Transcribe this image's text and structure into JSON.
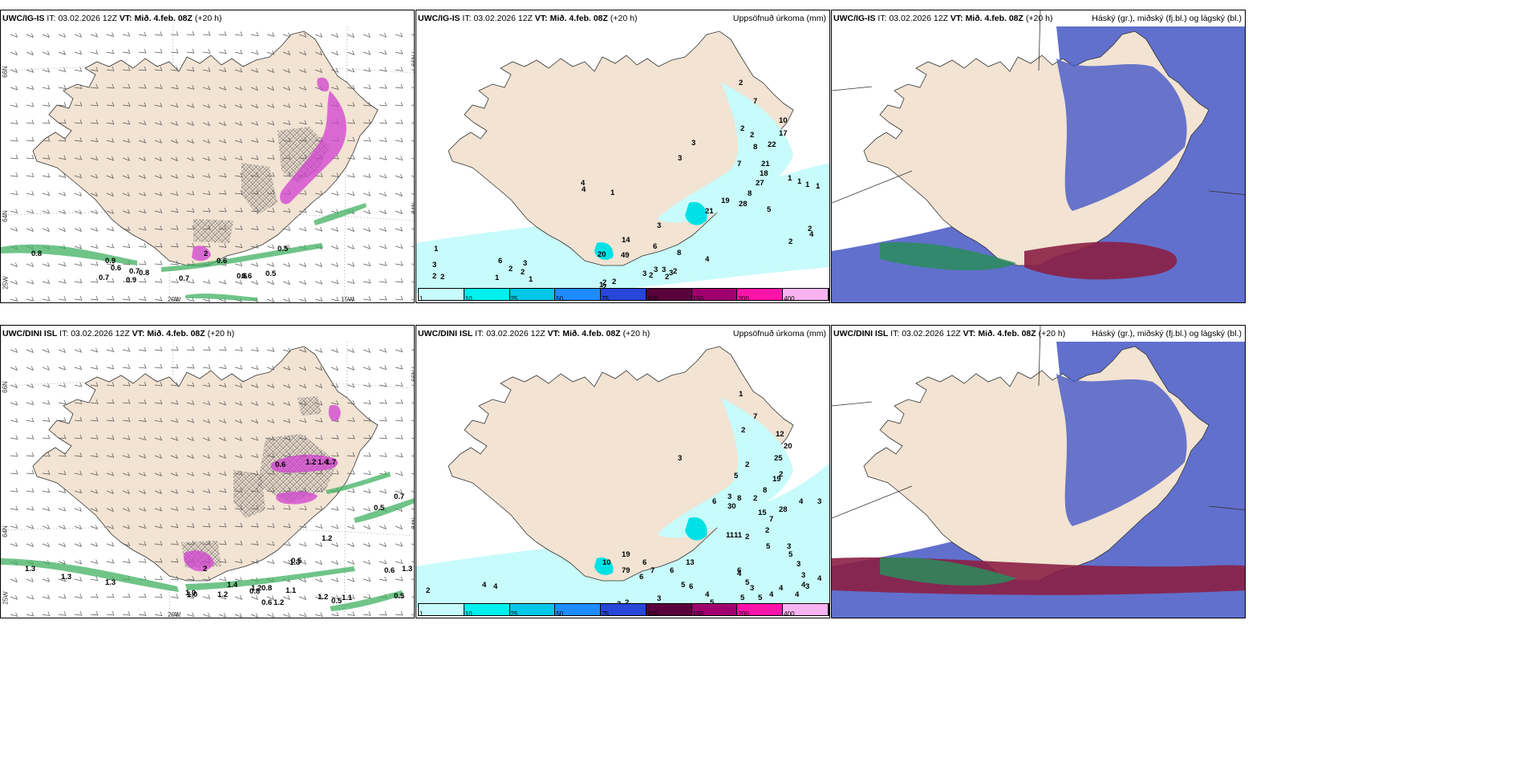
{
  "rows": [
    {
      "model": "UWC/IG-IS",
      "panels": [
        {
          "model": "UWC/IG-IS",
          "it_label": "IT:",
          "it": "03.02.2026 12Z",
          "vt_label": "VT:",
          "vt": "Mið. 4.feb. 08Z",
          "lead": "(+20 h)",
          "subtitle": "",
          "axis_labels": [
            "66N",
            "64N",
            "25W",
            "20W",
            "15W",
            "66N",
            "64N"
          ],
          "values": [
            "0.8",
            "0.9",
            "0.6",
            "0.7",
            "0.7",
            "0.9",
            "0.8",
            "0.7",
            "0.6",
            "0.6",
            "0.5",
            "0.5",
            "0.6",
            "2"
          ]
        },
        {
          "model": "UWC/IG-IS",
          "it_label": "IT:",
          "it": "03.02.2026 12Z",
          "vt_label": "VT:",
          "vt": "Mið. 4.feb. 08Z",
          "lead": "(+20 h)",
          "subtitle": "Uppsöfnuð úrkoma (mm)",
          "values": [
            "2",
            "7",
            "4",
            "2",
            "2",
            "10",
            "17",
            "22",
            "3",
            "8",
            "3",
            "21",
            "18",
            "4",
            "7",
            "27",
            "1",
            "1",
            "1",
            "1",
            "8",
            "19",
            "21",
            "28",
            "3",
            "5",
            "2",
            "2",
            "4",
            "1",
            "20",
            "14",
            "6",
            "8",
            "49",
            "3",
            "2",
            "1",
            "3",
            "6",
            "3",
            "2",
            "2",
            "1",
            "1",
            "2",
            "2",
            "3",
            "3",
            "2",
            "3",
            "2",
            "2",
            "1",
            "2",
            "2",
            "4"
          ]
        },
        {
          "model": "UWC/IG-IS",
          "it_label": "IT:",
          "it": "03.02.2026 12Z",
          "vt_label": "VT:",
          "vt": "Mið. 4.feb. 08Z",
          "lead": "(+20 h)",
          "subtitle": "Háský (gr.), miðský (fj.bl.) og lágský (bl.)"
        }
      ]
    },
    {
      "model": "UWC/DINI ISL",
      "panels": [
        {
          "model": "UWC/DINI ISL",
          "it_label": "IT:",
          "it": "03.02.2026 12Z",
          "vt_label": "VT:",
          "vt": "Mið. 4.feb. 08Z",
          "lead": "(+20 h)",
          "subtitle": "",
          "axis_labels": [
            "66N",
            "64N",
            "25W",
            "20W",
            "66N",
            "64N"
          ],
          "values": [
            "1.3",
            "1.3",
            "1.3",
            "1.0",
            "1.4",
            "1.2",
            "1.2",
            "0.8",
            "1.1",
            "0.6",
            "1.2",
            "1.2",
            "0.5",
            "1.1",
            "1.2",
            "0.5",
            "1.3",
            "0.6",
            "0.7",
            "0.5",
            "1.3",
            "0.5",
            "1.2",
            "1.4",
            "1.7",
            "2",
            "0.6",
            "0.8",
            "1.0"
          ]
        },
        {
          "model": "UWC/DINI ISL",
          "it_label": "IT:",
          "it": "03.02.2026 12Z",
          "vt_label": "VT:",
          "vt": "Mið. 4.feb. 08Z",
          "lead": "(+20 h)",
          "subtitle": "Uppsöfnuð úrkoma (mm)",
          "values": [
            "1",
            "7",
            "2",
            "12",
            "20",
            "25",
            "3",
            "2",
            "2",
            "8",
            "19",
            "5",
            "3",
            "6",
            "2",
            "8",
            "30",
            "15",
            "28",
            "4",
            "3",
            "7",
            "2",
            "2",
            "3",
            "11",
            "11",
            "5",
            "6",
            "5",
            "3",
            "3",
            "4",
            "3",
            "4",
            "4",
            "4",
            "4",
            "3",
            "4",
            "5",
            "5",
            "5",
            "13",
            "6",
            "5",
            "7",
            "6",
            "6",
            "3",
            "4",
            "6",
            "5",
            "19",
            "10",
            "79",
            "2",
            "2",
            "4",
            "4",
            "2"
          ]
        },
        {
          "model": "UWC/DINI ISL",
          "it_label": "IT:",
          "it": "03.02.2026 12Z",
          "vt_label": "VT:",
          "vt": "Mið. 4.feb. 08Z",
          "lead": "(+20 h)",
          "subtitle": "Háský (gr.), miðský (fj.bl.) og lágský (bl.)"
        }
      ]
    }
  ],
  "colorbar": {
    "ticks": [
      "1",
      "10",
      "25",
      "50",
      "75",
      "100",
      "150",
      "200",
      "400"
    ],
    "colors": [
      "#c8fbfb",
      "#00f0f0",
      "#00c8e6",
      "#1e8cff",
      "#2846d8",
      "#5a003c",
      "#a0006e",
      "#ff14aa",
      "#f8b4f0"
    ]
  },
  "colors": {
    "land": "#f2e3d3",
    "coast": "#333333",
    "precip_light": "#c8fbfb",
    "precip_mid": "#00e1e6",
    "snow_cross": "#555555",
    "shower_green": "#40b060",
    "shower_magenta": "#d040d0",
    "cloud_high": "#8b1f45",
    "cloud_mid": "#5060c8",
    "cloud_low": "#2a8c5a"
  }
}
